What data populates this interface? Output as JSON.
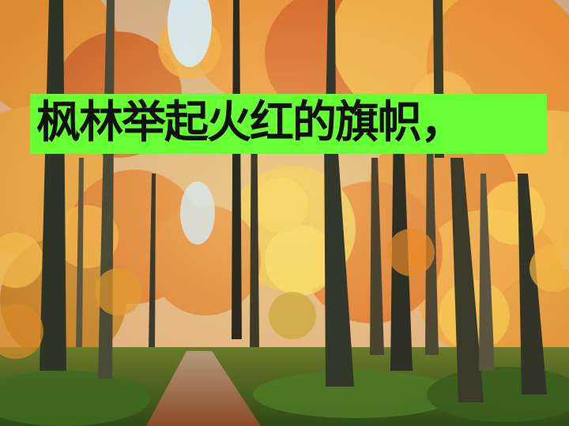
{
  "slide": {
    "caption": "枫林举起火红的旗帜，",
    "caption_background": "#66ff33",
    "caption_color": "#111111"
  },
  "photo": {
    "subject_icon": "autumn-forest-path-photo",
    "palette": [
      "#f2a23a",
      "#d9601e",
      "#e9c84a",
      "#3a2a14",
      "#4f7a2a",
      "#9cc9ea"
    ]
  }
}
